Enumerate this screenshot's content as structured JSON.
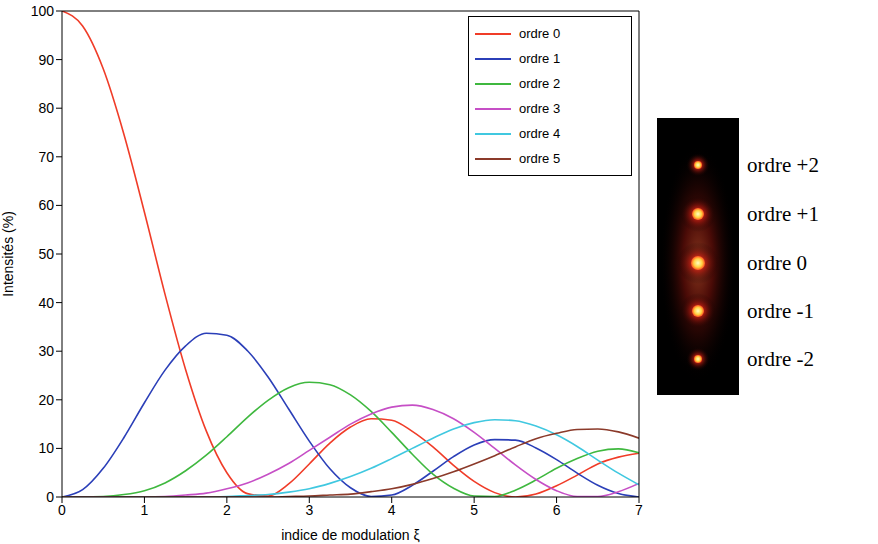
{
  "chart_data": {
    "type": "line",
    "x_label": "indice de modulation ξ",
    "y_label": "Intensités (%)",
    "x": [
      0,
      0.25,
      0.5,
      0.75,
      1,
      1.25,
      1.5,
      1.75,
      2,
      2.25,
      2.5,
      2.75,
      3,
      3.25,
      3.5,
      3.75,
      4,
      4.25,
      4.5,
      4.75,
      5,
      5.25,
      5.5,
      5.75,
      6,
      6.25,
      6.5,
      6.75,
      7
    ],
    "xlim": [
      0,
      7
    ],
    "xticks": [
      0,
      1,
      2,
      3,
      4,
      5,
      6,
      7
    ],
    "ylim": [
      0,
      100
    ],
    "yticks": [
      0,
      10,
      20,
      30,
      40,
      50,
      60,
      70,
      80,
      90,
      100
    ],
    "grid": false,
    "legend": "upper right",
    "series": [
      {
        "name": "ordre 0",
        "color": "#f03c28",
        "values": [
          100,
          96.9,
          88.1,
          74.7,
          58.6,
          41.7,
          26.2,
          13.6,
          5.0,
          0.7,
          0.2,
          2.7,
          6.8,
          11.1,
          14.4,
          16.1,
          15.8,
          13.5,
          10.3,
          6.5,
          3.2,
          0.9,
          0.0,
          0.6,
          2.3,
          4.5,
          6.8,
          8.2,
          9.0
        ]
      },
      {
        "name": "ordre 1",
        "color": "#2b3fb8",
        "values": [
          0,
          1.5,
          5.9,
          12.2,
          19.4,
          26.1,
          31.1,
          33.7,
          33.3,
          30.1,
          24.7,
          18.1,
          11.5,
          5.8,
          1.9,
          0.1,
          0.4,
          2.4,
          5.3,
          8.3,
          10.7,
          11.8,
          11.7,
          10.1,
          7.7,
          4.9,
          2.4,
          0.7,
          0.0
        ]
      },
      {
        "name": "ordre 2",
        "color": "#3fb83f",
        "values": [
          0,
          0.0,
          0.1,
          0.5,
          1.3,
          2.9,
          5.4,
          8.6,
          12.4,
          16.4,
          19.9,
          22.5,
          23.6,
          23.1,
          21.0,
          17.6,
          13.3,
          8.8,
          4.7,
          1.8,
          0.2,
          0.1,
          1.4,
          3.5,
          5.9,
          7.9,
          9.4,
          9.9,
          9.1
        ]
      },
      {
        "name": "ordre 3",
        "color": "#c64fc6",
        "values": [
          0,
          0,
          0,
          0,
          0,
          0.1,
          0.4,
          0.8,
          1.7,
          2.9,
          4.7,
          6.9,
          9.6,
          12.3,
          15.0,
          17.1,
          18.5,
          18.9,
          18.0,
          16.1,
          13.3,
          10.0,
          6.6,
          3.6,
          1.3,
          0.1,
          0.1,
          1.1,
          2.8
        ]
      },
      {
        "name": "ordre 4",
        "color": "#40c8e0",
        "values": [
          0,
          0,
          0,
          0,
          0,
          0,
          0,
          0,
          0.1,
          0.3,
          0.5,
          1.0,
          1.7,
          2.8,
          4.2,
          5.9,
          7.9,
          10.0,
          12.1,
          14.0,
          15.3,
          15.9,
          15.7,
          14.6,
          12.8,
          10.4,
          7.6,
          4.9,
          2.5
        ]
      },
      {
        "name": "ordre 5",
        "color": "#8b3a2a",
        "values": [
          0,
          0,
          0,
          0,
          0,
          0,
          0,
          0,
          0,
          0,
          0,
          0.1,
          0.2,
          0.4,
          0.6,
          1.1,
          1.7,
          2.6,
          3.8,
          5.2,
          6.8,
          8.5,
          10.3,
          12.0,
          13.1,
          13.9,
          14.0,
          13.4,
          12.1
        ]
      }
    ],
    "annotations": [
      "ordre +2",
      "ordre +1",
      "ordre 0",
      "ordre -1",
      "ordre -2"
    ]
  }
}
